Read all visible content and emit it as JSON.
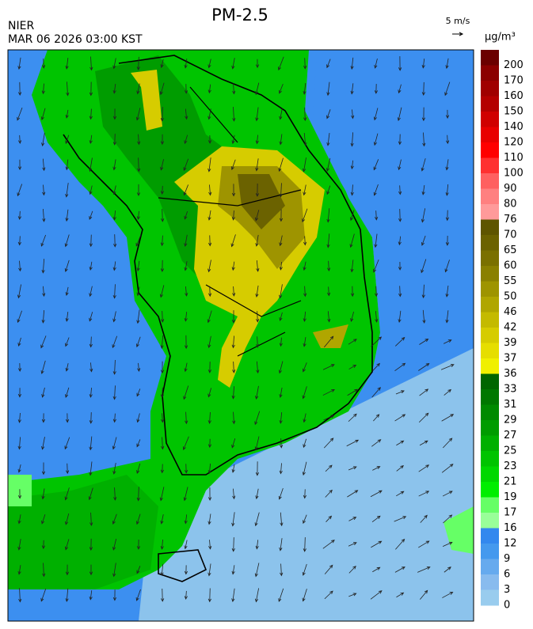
{
  "header": {
    "title": "PM-2.5",
    "agency": "NIER",
    "timestamp": "MAR 06 2026 03:00 KST",
    "wind_scale": "5 m/s"
  },
  "legend": {
    "unit": "µg/m³",
    "levels": [
      200,
      170,
      160,
      150,
      140,
      120,
      110,
      100,
      90,
      80,
      76,
      70,
      65,
      60,
      55,
      50,
      46,
      42,
      39,
      37,
      36,
      33,
      31,
      29,
      27,
      25,
      23,
      21,
      19,
      17,
      16,
      12,
      9,
      6,
      3,
      0
    ],
    "colors": [
      "#6b0000",
      "#8b0000",
      "#a00000",
      "#b40000",
      "#d00000",
      "#e80000",
      "#ff0000",
      "#ff3030",
      "#ff6060",
      "#ff8080",
      "#ff9a9a",
      "#5e5500",
      "#6b6200",
      "#7a7000",
      "#8a8000",
      "#9e9400",
      "#b0a600",
      "#c4ba00",
      "#d6cc00",
      "#e6de00",
      "#f0f000",
      "#006600",
      "#007800",
      "#008a00",
      "#009c00",
      "#00b000",
      "#00c400",
      "#00d800",
      "#00ee00",
      "#66ff66",
      "#99ff99",
      "#3388ee",
      "#4499ee",
      "#66aaee",
      "#88bbee",
      "#99ccee"
    ]
  }
}
